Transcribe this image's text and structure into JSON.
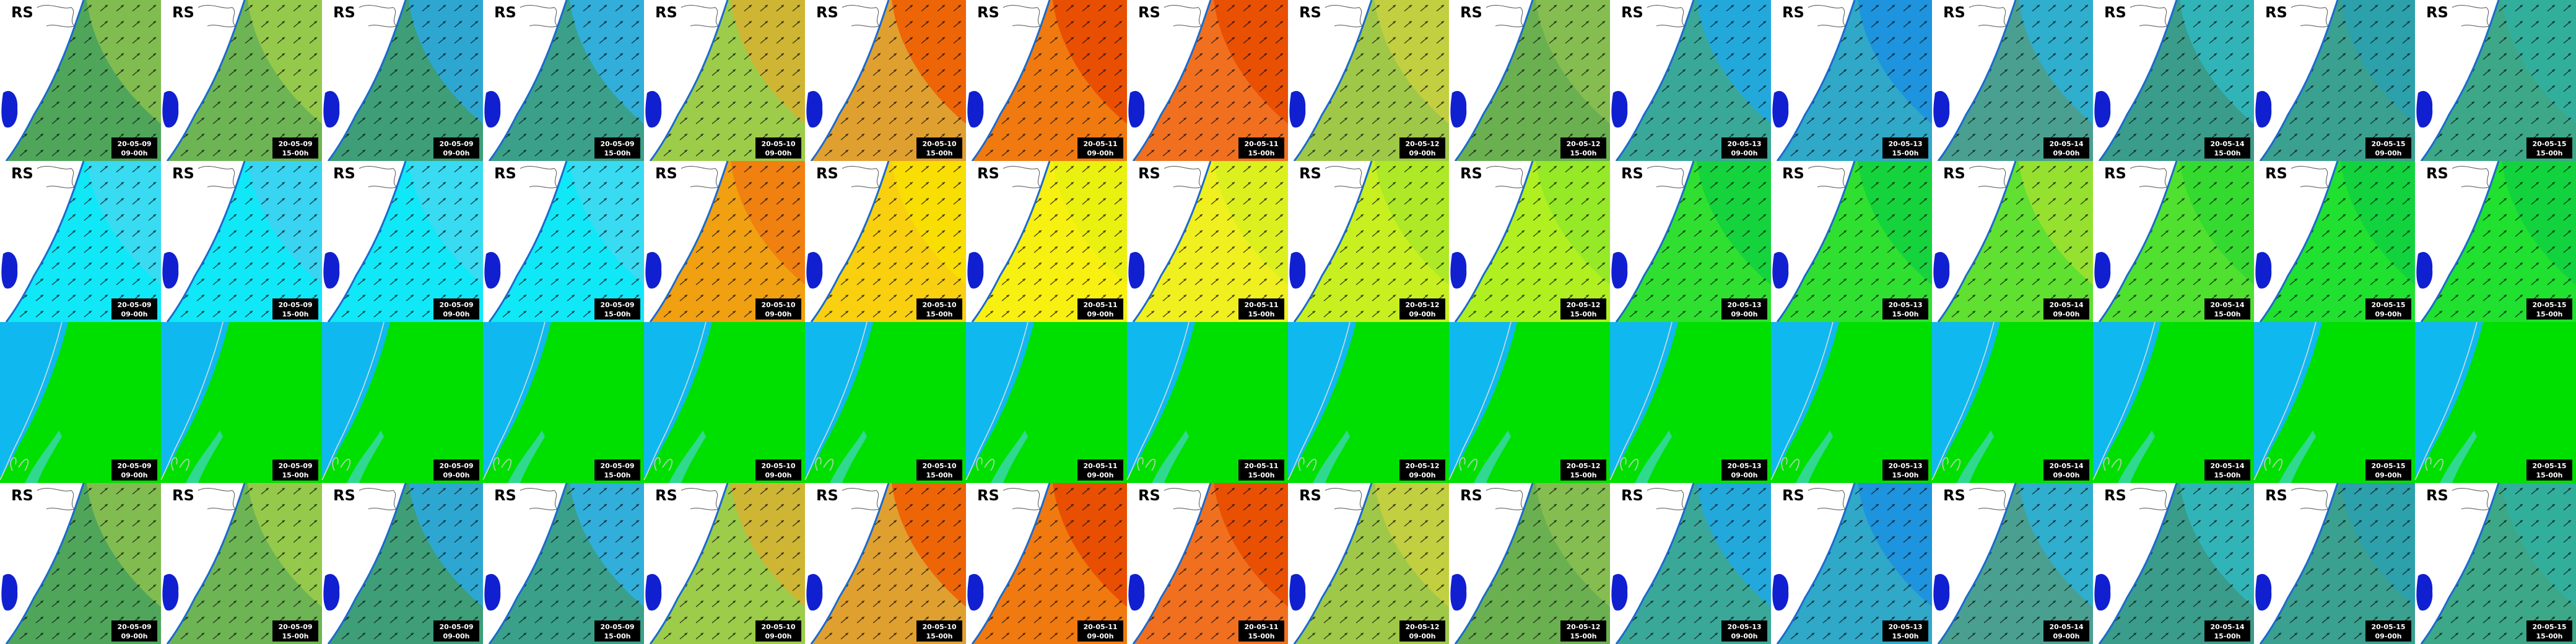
{
  "region_label": "RS",
  "columns": [
    {
      "date": "20-05-09",
      "time": "09-00h"
    },
    {
      "date": "20-05-09",
      "time": "15-00h"
    },
    {
      "date": "20-05-09",
      "time": "09-00h"
    },
    {
      "date": "20-05-09",
      "time": "15-00h"
    },
    {
      "date": "20-05-10",
      "time": "09-00h"
    },
    {
      "date": "20-05-10",
      "time": "15-00h"
    },
    {
      "date": "20-05-11",
      "time": "09-00h"
    },
    {
      "date": "20-05-11",
      "time": "15-00h"
    },
    {
      "date": "20-05-12",
      "time": "09-00h"
    },
    {
      "date": "20-05-12",
      "time": "15-00h"
    },
    {
      "date": "20-05-13",
      "time": "09-00h"
    },
    {
      "date": "20-05-13",
      "time": "15-00h"
    },
    {
      "date": "20-05-14",
      "time": "09-00h"
    },
    {
      "date": "20-05-14",
      "time": "15-00h"
    },
    {
      "date": "20-05-15",
      "time": "09-00h"
    },
    {
      "date": "20-05-15",
      "time": "15-00h"
    }
  ]
}
